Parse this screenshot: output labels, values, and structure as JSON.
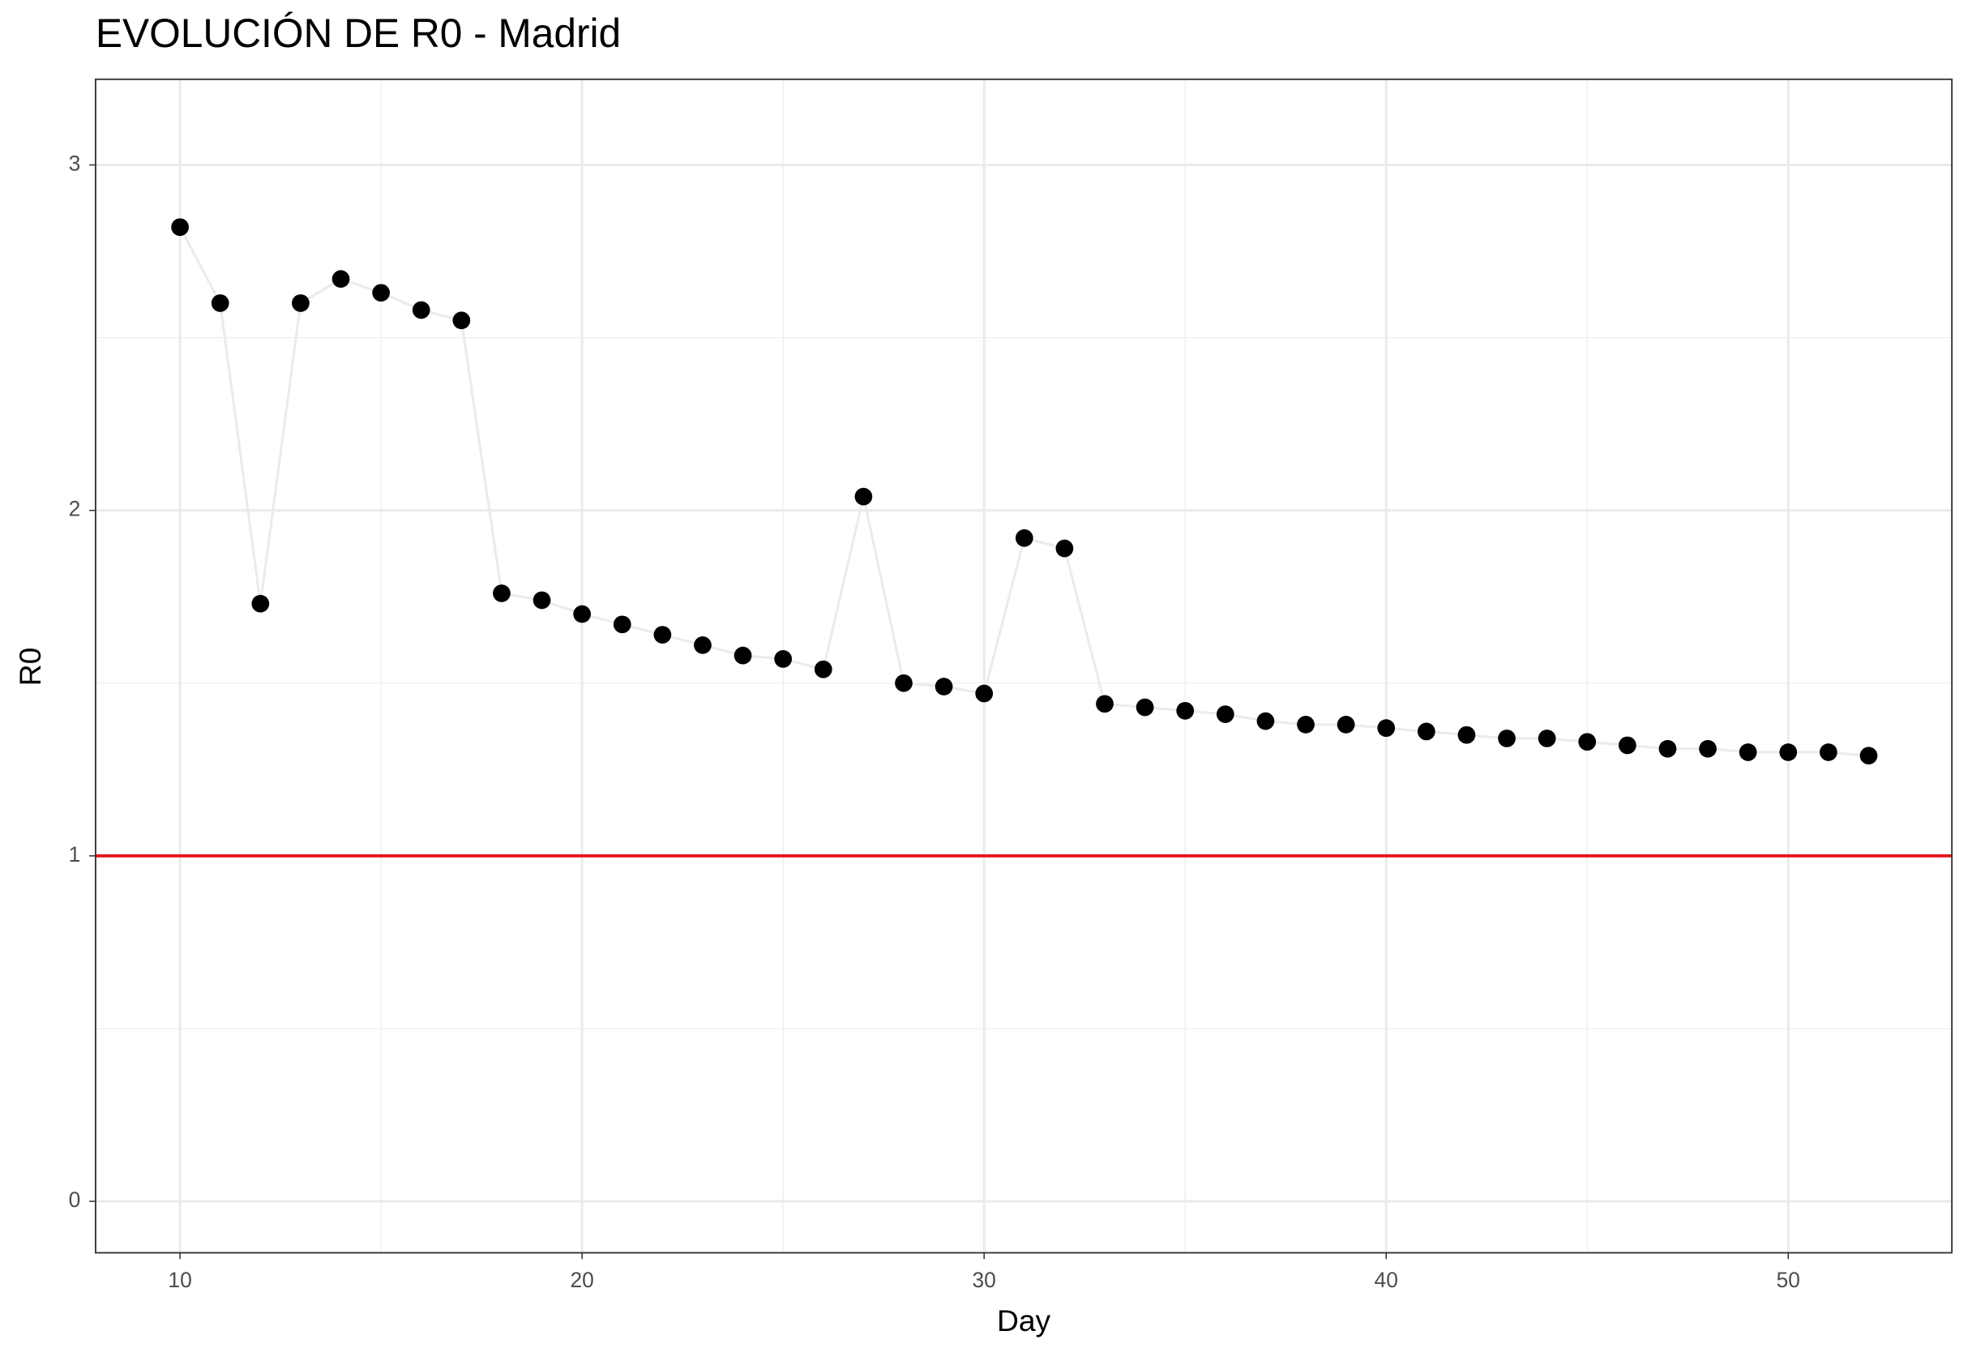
{
  "chart_data": {
    "type": "line",
    "title": "EVOLUCIÓN DE R0 - Madrid",
    "x_label": "Day",
    "y_label": "R0",
    "x": [
      10,
      11,
      12,
      13,
      14,
      15,
      16,
      17,
      18,
      19,
      20,
      21,
      22,
      23,
      24,
      25,
      26,
      27,
      28,
      29,
      30,
      31,
      32,
      33,
      34,
      35,
      36,
      37,
      38,
      39,
      40,
      41,
      42,
      43,
      44,
      45,
      46,
      47,
      48,
      49,
      50,
      51,
      52
    ],
    "series": [
      {
        "name": "R0",
        "color": "#000000",
        "line_color": "#ebebeb",
        "values": [
          2.82,
          2.6,
          1.73,
          2.6,
          2.67,
          2.63,
          2.58,
          2.55,
          1.76,
          1.74,
          1.7,
          1.67,
          1.64,
          1.61,
          1.58,
          1.57,
          1.54,
          2.04,
          1.5,
          1.49,
          1.47,
          1.92,
          1.89,
          1.44,
          1.43,
          1.42,
          1.41,
          1.39,
          1.38,
          1.38,
          1.37,
          1.36,
          1.35,
          1.34,
          1.34,
          1.33,
          1.32,
          1.31,
          1.31,
          1.3,
          1.3,
          1.3,
          1.29
        ]
      }
    ],
    "hline": {
      "value": 1,
      "color": "#e8141c"
    },
    "xlim": [
      7.9,
      54.07
    ],
    "ylim": [
      -0.149,
      3.248
    ],
    "xticks": [
      10,
      20,
      30,
      40,
      50
    ],
    "yticks": [
      0,
      1,
      2,
      3
    ],
    "grid": true
  }
}
